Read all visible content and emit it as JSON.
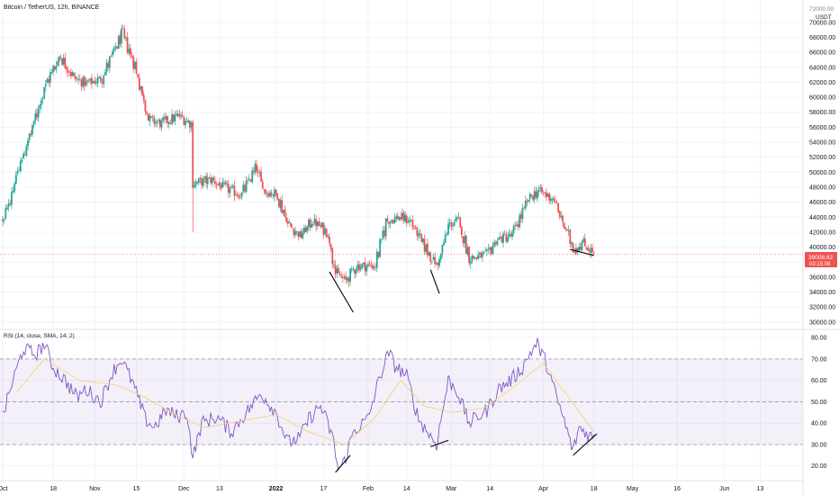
{
  "header": {
    "title": "Bitcoin / TetherUS, 12h, BINANCE",
    "currency": "USDT",
    "top_cut_label": "72000.00"
  },
  "colors": {
    "up": "#26a69a",
    "down": "#ef5350",
    "rsi_line": "#7e57c2",
    "rsi_ma": "#f7d27e",
    "rsi_band": "#7e57c2",
    "price_line": "#ef5350",
    "grid": "#f0f3fa",
    "axis_text": "#131722"
  },
  "rsi_panel": {
    "label": "RSI (14, close, SMA, 14, 2)"
  },
  "price_badge": {
    "price": "39008.62",
    "countdown": "03:15:08"
  },
  "chart_data": [
    {
      "type": "candlestick",
      "title": "Bitcoin / TetherUS, 12h, BINANCE",
      "ylabel": "USDT",
      "ylim": [
        29500,
        72500
      ],
      "grid": true,
      "x_ticks": [
        "Oct",
        "18",
        "Nov",
        "15",
        "Dec",
        "13",
        "2022",
        "17",
        "Feb",
        "14",
        "Mar",
        "14",
        "Apr",
        "18",
        "May",
        "16",
        "Jun",
        "13"
      ],
      "y_ticks": [
        "30000.00",
        "32000.00",
        "34000.00",
        "36000.00",
        "38000.00",
        "40000.00",
        "42000.00",
        "44000.00",
        "46000.00",
        "48000.00",
        "50000.00",
        "52000.00",
        "54000.00",
        "56000.00",
        "58000.00",
        "60000.00",
        "62000.00",
        "64000.00",
        "66000.00",
        "68000.00",
        "70000.00"
      ],
      "close_anchors": [
        {
          "date": "2021-10-01",
          "close": 43500
        },
        {
          "date": "2021-10-05",
          "close": 49000
        },
        {
          "date": "2021-10-10",
          "close": 55000
        },
        {
          "date": "2021-10-15",
          "close": 61500
        },
        {
          "date": "2021-10-20",
          "close": 65500
        },
        {
          "date": "2021-10-25",
          "close": 62500
        },
        {
          "date": "2021-10-29",
          "close": 61800
        },
        {
          "date": "2021-11-03",
          "close": 62500
        },
        {
          "date": "2021-11-10",
          "close": 68500
        },
        {
          "date": "2021-11-14",
          "close": 64500
        },
        {
          "date": "2021-11-19",
          "close": 57000
        },
        {
          "date": "2021-11-23",
          "close": 56500
        },
        {
          "date": "2021-11-29",
          "close": 57500
        },
        {
          "date": "2021-12-03",
          "close": 56500
        },
        {
          "date": "2021-12-04",
          "close": 48500
        },
        {
          "date": "2021-12-10",
          "close": 49000
        },
        {
          "date": "2021-12-14",
          "close": 48000
        },
        {
          "date": "2021-12-20",
          "close": 47000
        },
        {
          "date": "2021-12-25",
          "close": 50500
        },
        {
          "date": "2021-12-28",
          "close": 47500
        },
        {
          "date": "2022-01-01",
          "close": 47000
        },
        {
          "date": "2022-01-05",
          "close": 43000
        },
        {
          "date": "2022-01-09",
          "close": 41500
        },
        {
          "date": "2022-01-13",
          "close": 43500
        },
        {
          "date": "2022-01-18",
          "close": 42000
        },
        {
          "date": "2022-01-21",
          "close": 36500
        },
        {
          "date": "2022-01-24",
          "close": 35500
        },
        {
          "date": "2022-01-28",
          "close": 37500
        },
        {
          "date": "2022-02-03",
          "close": 37500
        },
        {
          "date": "2022-02-07",
          "close": 43500
        },
        {
          "date": "2022-02-11",
          "close": 44000
        },
        {
          "date": "2022-02-15",
          "close": 43500
        },
        {
          "date": "2022-02-19",
          "close": 40500
        },
        {
          "date": "2022-02-24",
          "close": 37500
        },
        {
          "date": "2022-02-28",
          "close": 43000
        },
        {
          "date": "2022-03-03",
          "close": 43500
        },
        {
          "date": "2022-03-07",
          "close": 38500
        },
        {
          "date": "2022-03-13",
          "close": 39000
        },
        {
          "date": "2022-03-16",
          "close": 41000
        },
        {
          "date": "2022-03-21",
          "close": 41500
        },
        {
          "date": "2022-03-27",
          "close": 46500
        },
        {
          "date": "2022-03-30",
          "close": 47500
        },
        {
          "date": "2022-04-04",
          "close": 46500
        },
        {
          "date": "2022-04-07",
          "close": 43500
        },
        {
          "date": "2022-04-11",
          "close": 39800
        },
        {
          "date": "2022-04-14",
          "close": 40500
        },
        {
          "date": "2022-04-17",
          "close": 39500
        },
        {
          "date": "2022-04-18",
          "close": 39000
        }
      ],
      "notable_low": {
        "date": "2021-12-04",
        "low": 42000
      },
      "last_price": 39008.62,
      "last_price_countdown": "03:15:08",
      "trendlines": [
        {
          "from": {
            "date": "2022-01-19",
            "value": 36700
          },
          "to": {
            "date": "2022-01-27",
            "value": 31300
          }
        },
        {
          "from": {
            "date": "2022-02-22",
            "value": 37000
          },
          "to": {
            "date": "2022-02-25",
            "value": 33800
          }
        },
        {
          "from": {
            "date": "2022-04-10",
            "value": 39700
          },
          "to": {
            "date": "2022-04-18",
            "value": 38900
          }
        }
      ]
    },
    {
      "type": "line",
      "title": "RSI (14, close, SMA, 14, 2)",
      "ylim": [
        14,
        83
      ],
      "grid": true,
      "y_ticks": [
        "20.00",
        "30.00",
        "40.00",
        "50.00",
        "60.00",
        "70.00",
        "80.00"
      ],
      "bands": {
        "upper": 70,
        "middle": 50,
        "lower": 30
      },
      "series": [
        {
          "values": [
            {
              "date": "2021-10-01",
              "value": 43
            },
            {
              "date": "2021-10-04",
              "value": 58
            },
            {
              "date": "2021-10-08",
              "value": 75
            },
            {
              "date": "2021-10-12",
              "value": 72
            },
            {
              "date": "2021-10-15",
              "value": 77
            },
            {
              "date": "2021-10-18",
              "value": 66
            },
            {
              "date": "2021-10-22",
              "value": 60
            },
            {
              "date": "2021-10-26",
              "value": 52
            },
            {
              "date": "2021-10-29",
              "value": 56
            },
            {
              "date": "2021-11-03",
              "value": 50
            },
            {
              "date": "2021-11-07",
              "value": 64
            },
            {
              "date": "2021-11-10",
              "value": 70
            },
            {
              "date": "2021-11-14",
              "value": 58
            },
            {
              "date": "2021-11-18",
              "value": 42
            },
            {
              "date": "2021-11-21",
              "value": 38
            },
            {
              "date": "2021-11-25",
              "value": 46
            },
            {
              "date": "2021-11-29",
              "value": 43
            },
            {
              "date": "2021-12-02",
              "value": 45
            },
            {
              "date": "2021-12-04",
              "value": 24
            },
            {
              "date": "2021-12-07",
              "value": 40
            },
            {
              "date": "2021-12-12",
              "value": 43
            },
            {
              "date": "2021-12-17",
              "value": 36
            },
            {
              "date": "2021-12-22",
              "value": 45
            },
            {
              "date": "2021-12-27",
              "value": 54
            },
            {
              "date": "2022-01-01",
              "value": 45
            },
            {
              "date": "2022-01-05",
              "value": 31
            },
            {
              "date": "2022-01-09",
              "value": 33
            },
            {
              "date": "2022-01-12",
              "value": 42
            },
            {
              "date": "2022-01-16",
              "value": 48
            },
            {
              "date": "2022-01-20",
              "value": 34
            },
            {
              "date": "2022-01-22",
              "value": 18
            },
            {
              "date": "2022-01-24",
              "value": 22
            },
            {
              "date": "2022-01-27",
              "value": 36
            },
            {
              "date": "2022-02-01",
              "value": 42
            },
            {
              "date": "2022-02-05",
              "value": 62
            },
            {
              "date": "2022-02-08",
              "value": 73
            },
            {
              "date": "2022-02-10",
              "value": 67
            },
            {
              "date": "2022-02-14",
              "value": 62
            },
            {
              "date": "2022-02-18",
              "value": 42
            },
            {
              "date": "2022-02-22",
              "value": 34
            },
            {
              "date": "2022-02-24",
              "value": 30
            },
            {
              "date": "2022-02-28",
              "value": 60
            },
            {
              "date": "2022-03-03",
              "value": 55
            },
            {
              "date": "2022-03-07",
              "value": 40
            },
            {
              "date": "2022-03-13",
              "value": 46
            },
            {
              "date": "2022-03-17",
              "value": 56
            },
            {
              "date": "2022-03-21",
              "value": 60
            },
            {
              "date": "2022-03-25",
              "value": 66
            },
            {
              "date": "2022-03-28",
              "value": 74
            },
            {
              "date": "2022-03-30",
              "value": 77
            },
            {
              "date": "2022-04-02",
              "value": 68
            },
            {
              "date": "2022-04-05",
              "value": 54
            },
            {
              "date": "2022-04-08",
              "value": 41
            },
            {
              "date": "2022-04-11",
              "value": 27
            },
            {
              "date": "2022-04-13",
              "value": 38
            },
            {
              "date": "2022-04-15",
              "value": 36
            },
            {
              "date": "2022-04-18",
              "value": 33
            }
          ]
        },
        {
          "values": [
            {
              "date": "2021-10-06",
              "value": 55
            },
            {
              "date": "2021-10-15",
              "value": 70
            },
            {
              "date": "2021-10-27",
              "value": 60
            },
            {
              "date": "2021-11-08",
              "value": 58
            },
            {
              "date": "2021-11-18",
              "value": 52
            },
            {
              "date": "2021-11-28",
              "value": 44
            },
            {
              "date": "2021-12-08",
              "value": 38
            },
            {
              "date": "2021-12-20",
              "value": 41
            },
            {
              "date": "2022-01-01",
              "value": 44
            },
            {
              "date": "2022-01-12",
              "value": 36
            },
            {
              "date": "2022-01-24",
              "value": 30
            },
            {
              "date": "2022-02-03",
              "value": 42
            },
            {
              "date": "2022-02-12",
              "value": 60
            },
            {
              "date": "2022-02-20",
              "value": 48
            },
            {
              "date": "2022-03-01",
              "value": 45
            },
            {
              "date": "2022-03-12",
              "value": 47
            },
            {
              "date": "2022-03-22",
              "value": 57
            },
            {
              "date": "2022-04-01",
              "value": 68
            },
            {
              "date": "2022-04-08",
              "value": 55
            },
            {
              "date": "2022-04-18",
              "value": 36
            }
          ]
        }
      ],
      "trendlines": [
        {
          "from": {
            "date": "2022-01-21",
            "value": 17
          },
          "to": {
            "date": "2022-01-26",
            "value": 25
          }
        },
        {
          "from": {
            "date": "2022-02-22",
            "value": 29
          },
          "to": {
            "date": "2022-02-28",
            "value": 32
          }
        },
        {
          "from": {
            "date": "2022-04-11",
            "value": 25
          },
          "to": {
            "date": "2022-04-19",
            "value": 35
          }
        }
      ]
    }
  ]
}
